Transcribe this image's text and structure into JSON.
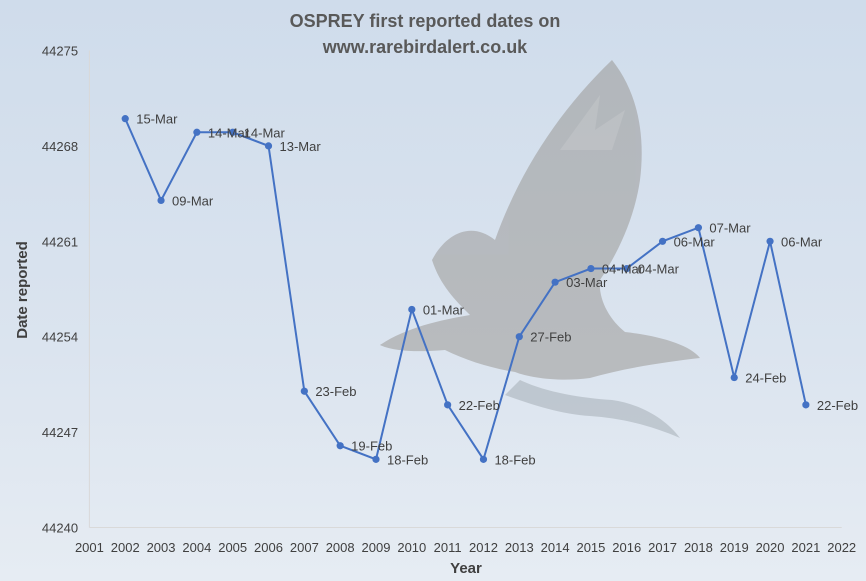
{
  "chart_data": {
    "type": "line",
    "title_line1": "OSPREY first reported dates on",
    "title_line2": "www.rarebirdalert.co.uk",
    "xlabel": "Year",
    "ylabel": "Date reported",
    "xlim": [
      2001,
      2022
    ],
    "ylim": [
      44240,
      44275
    ],
    "x_ticks": [
      2001,
      2002,
      2003,
      2004,
      2005,
      2006,
      2007,
      2008,
      2009,
      2010,
      2011,
      2012,
      2013,
      2014,
      2015,
      2016,
      2017,
      2018,
      2019,
      2020,
      2021,
      2022
    ],
    "y_ticks": [
      44240,
      44247,
      44254,
      44261,
      44268,
      44275
    ],
    "series_color": "#4472c4",
    "grid": false,
    "points": [
      {
        "x": 2002,
        "y": 44270,
        "label": "15-Mar"
      },
      {
        "x": 2003,
        "y": 44264,
        "label": "09-Mar"
      },
      {
        "x": 2004,
        "y": 44269,
        "label": "14-Mar"
      },
      {
        "x": 2005,
        "y": 44269,
        "label": "14-Mar"
      },
      {
        "x": 2006,
        "y": 44268,
        "label": "13-Mar"
      },
      {
        "x": 2007,
        "y": 44250,
        "label": "23-Feb"
      },
      {
        "x": 2008,
        "y": 44246,
        "label": "19-Feb"
      },
      {
        "x": 2009,
        "y": 44245,
        "label": "18-Feb"
      },
      {
        "x": 2010,
        "y": 44256,
        "label": "01-Mar"
      },
      {
        "x": 2011,
        "y": 44249,
        "label": "22-Feb"
      },
      {
        "x": 2012,
        "y": 44245,
        "label": "18-Feb"
      },
      {
        "x": 2013,
        "y": 44254,
        "label": "27-Feb"
      },
      {
        "x": 2014,
        "y": 44258,
        "label": "03-Mar"
      },
      {
        "x": 2015,
        "y": 44259,
        "label": "04-Mar"
      },
      {
        "x": 2016,
        "y": 44259,
        "label": "04-Mar"
      },
      {
        "x": 2017,
        "y": 44261,
        "label": "06-Mar"
      },
      {
        "x": 2018,
        "y": 44262,
        "label": "07-Mar"
      },
      {
        "x": 2019,
        "y": 44251,
        "label": "24-Feb"
      },
      {
        "x": 2020,
        "y": 44261,
        "label": "06-Mar"
      },
      {
        "x": 2021,
        "y": 44249,
        "label": "22-Feb"
      }
    ]
  }
}
